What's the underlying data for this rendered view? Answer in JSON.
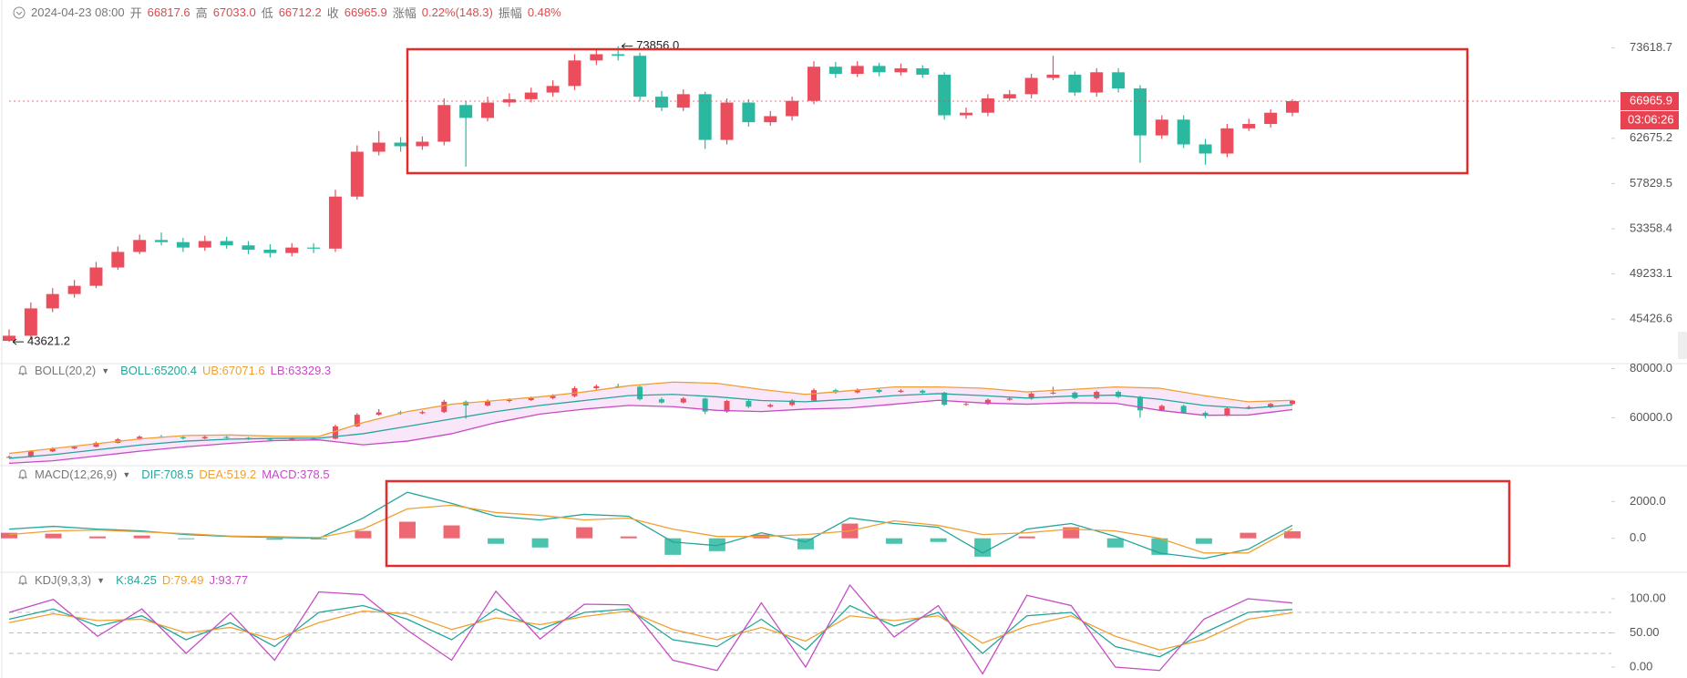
{
  "header": {
    "datetime": "2024-04-23 08:00",
    "fields": [
      {
        "label": "开",
        "value": "66817.6"
      },
      {
        "label": "高",
        "value": "67033.0"
      },
      {
        "label": "低",
        "value": "66712.2"
      },
      {
        "label": "收",
        "value": "66965.9"
      },
      {
        "label": "涨幅",
        "value": "0.22%(148.3)"
      },
      {
        "label": "振幅",
        "value": "0.48%"
      }
    ]
  },
  "chart_data": [
    {
      "type": "candlestick",
      "log_scale": true,
      "ylim": [
        43000,
        78000
      ],
      "yticks": [
        45426.6,
        49233.1,
        53358.4,
        57829.5,
        62675.2,
        73618.7
      ],
      "up_color": "#eb4d5c",
      "down_color": "#2bb8a0",
      "open": [
        43700,
        44100,
        46300,
        47500,
        48200,
        49800,
        51200,
        52300,
        52100,
        51600,
        52200,
        51800,
        51400,
        51100,
        51600,
        51500,
        56500,
        61200,
        62200,
        61800,
        62300,
        66500,
        65000,
        66800,
        67200,
        68000,
        68800,
        72000,
        72800,
        72600,
        67500,
        66200,
        67800,
        62500,
        66800,
        64500,
        65200,
        67000,
        71200,
        70300,
        71300,
        70500,
        71000,
        70200,
        65300,
        65600,
        67300,
        67800,
        69800,
        70200,
        68000,
        70500,
        68500,
        63000,
        64800,
        62000,
        61000,
        63800,
        64300,
        65600
      ],
      "high": [
        44600,
        46800,
        48000,
        48700,
        50300,
        51700,
        52800,
        53000,
        52500,
        52700,
        52600,
        52200,
        51900,
        52000,
        52000,
        57200,
        61900,
        63500,
        62800,
        62900,
        67300,
        67000,
        67500,
        67900,
        68600,
        69500,
        72800,
        73500,
        73856,
        73000,
        68200,
        68400,
        68100,
        67300,
        67200,
        65800,
        67500,
        71900,
        71800,
        71900,
        71700,
        71600,
        71400,
        70500,
        66200,
        67800,
        68300,
        70300,
        72600,
        70600,
        71000,
        71000,
        68900,
        65300,
        65300,
        62600,
        64300,
        64900,
        66000,
        67200
      ],
      "low": [
        43621.2,
        43800,
        46000,
        47200,
        48000,
        49600,
        51000,
        51800,
        51200,
        51300,
        51500,
        51000,
        50700,
        50800,
        51100,
        51200,
        56200,
        60800,
        61200,
        61400,
        61900,
        59600,
        64600,
        66300,
        66800,
        67500,
        68300,
        71400,
        72000,
        67000,
        65800,
        65800,
        61500,
        62000,
        64000,
        64100,
        64700,
        66600,
        69800,
        69900,
        70000,
        70100,
        69800,
        64800,
        64900,
        65200,
        67000,
        67300,
        69500,
        67600,
        67500,
        68000,
        60000,
        62600,
        61600,
        59800,
        60600,
        63500,
        63900,
        65200
      ],
      "close": [
        44100,
        46300,
        47500,
        48200,
        49800,
        51200,
        52300,
        52100,
        51600,
        52200,
        51800,
        51400,
        51100,
        51600,
        51500,
        56500,
        61200,
        62200,
        61800,
        62300,
        66500,
        65000,
        66800,
        67200,
        68000,
        68800,
        72000,
        72800,
        72600,
        67500,
        66200,
        67800,
        62500,
        66800,
        64500,
        65200,
        67000,
        71200,
        70300,
        71300,
        70500,
        71000,
        70200,
        65300,
        65600,
        67300,
        67800,
        69800,
        70200,
        68000,
        70500,
        68500,
        63000,
        64800,
        62000,
        61000,
        63800,
        64300,
        65600,
        66965.9
      ],
      "annotations": [
        {
          "value": 73856,
          "label": "73856.0"
        },
        {
          "value": 43621.2,
          "label": "43621.2"
        }
      ],
      "last_price": 66965.9,
      "last_price_color": "#e8414f",
      "countdown": "03:06:26"
    },
    {
      "type": "line",
      "title": "BOLL(20,2)",
      "ylim": [
        42000,
        82000
      ],
      "yticks": [
        {
          "value": 60000,
          "label": "60000.0"
        },
        {
          "value": 80000,
          "label": "80000.0"
        }
      ],
      "show_price": true,
      "band_fill": "#f6dcf6",
      "series": [
        {
          "name": "BOLL:65200.4",
          "color": "#26a69a",
          "values": [
            43500,
            45000,
            47000,
            49000,
            50500,
            51300,
            51600,
            51700,
            53500,
            56500,
            59500,
            62500,
            65000,
            67000,
            69000,
            69500,
            68500,
            67000,
            66500,
            67500,
            69000,
            69800,
            69000,
            68000,
            68800,
            69200,
            67500,
            65000,
            63800,
            65200
          ]
        },
        {
          "name": "UB:67071.6",
          "color": "#f0a032",
          "values": [
            45500,
            47500,
            49500,
            51500,
            52800,
            53000,
            52500,
            52400,
            58000,
            62500,
            65500,
            67000,
            68500,
            70500,
            73000,
            74500,
            74000,
            71500,
            69500,
            71000,
            72500,
            72500,
            72000,
            70500,
            71500,
            72500,
            72000,
            69000,
            66500,
            67100
          ]
        },
        {
          "name": "LB:63329.3",
          "color": "#c54cc5",
          "values": [
            41500,
            42500,
            44500,
            46500,
            48200,
            49600,
            50700,
            51000,
            49000,
            50500,
            53500,
            58000,
            61500,
            63500,
            65000,
            64500,
            63000,
            62500,
            63500,
            64000,
            65500,
            67100,
            66000,
            65500,
            66100,
            65900,
            63000,
            61000,
            61100,
            63300
          ]
        }
      ]
    },
    {
      "type": "macd",
      "title": "MACD(12,26,9)",
      "ylim": [
        -1700,
        3700
      ],
      "yticks": [
        {
          "value": 0,
          "label": "0.0"
        },
        {
          "value": 2000,
          "label": "2000.0"
        }
      ],
      "up_color": "#eb4d5c",
      "down_color": "#2bb8a0",
      "series": [
        {
          "name": "DIF:708.5",
          "color": "#26a69a",
          "values": [
            500,
            650,
            500,
            400,
            200,
            100,
            50,
            0,
            1100,
            2500,
            1900,
            1200,
            1000,
            1300,
            1200,
            -200,
            -400,
            300,
            -200,
            1100,
            800,
            600,
            -800,
            500,
            800,
            100,
            -800,
            -1100,
            -600,
            708.5
          ]
        },
        {
          "name": "DEA:519.2",
          "color": "#f0a032",
          "values": [
            200,
            400,
            450,
            350,
            250,
            120,
            90,
            40,
            500,
            1600,
            1800,
            1400,
            1250,
            1000,
            1100,
            500,
            100,
            100,
            200,
            400,
            950,
            700,
            200,
            300,
            500,
            400,
            0,
            -800,
            -800,
            519.2
          ]
        },
        {
          "name": "MACD:378.5",
          "color": "#c54cc5",
          "values": [
            300,
            250,
            100,
            150,
            -50,
            0,
            -80,
            -60,
            400,
            900,
            700,
            -300,
            -500,
            600,
            100,
            -900,
            -700,
            200,
            -600,
            800,
            -300,
            -200,
            -1000,
            100,
            600,
            -500,
            -900,
            -300,
            300,
            378.5
          ]
        }
      ]
    },
    {
      "type": "line",
      "title": "KDJ(9,3,3)",
      "ylim": [
        -12,
        136
      ],
      "yticks": [
        {
          "value": 0,
          "label": "0.00"
        },
        {
          "value": 50,
          "label": "50.00"
        },
        {
          "value": 100,
          "label": "100.00"
        }
      ],
      "reference_lines": [
        20,
        50,
        80
      ],
      "series": [
        {
          "name": "K:84.25",
          "color": "#26a69a",
          "values": [
            70,
            85,
            60,
            75,
            40,
            65,
            30,
            80,
            90,
            70,
            40,
            85,
            55,
            80,
            85,
            40,
            30,
            70,
            25,
            90,
            60,
            80,
            20,
            75,
            80,
            30,
            15,
            50,
            80,
            84.25
          ]
        },
        {
          "name": "D:79.49",
          "color": "#f0a032",
          "values": [
            65,
            78,
            68,
            70,
            50,
            58,
            40,
            65,
            82,
            78,
            55,
            72,
            62,
            74,
            82,
            55,
            40,
            58,
            38,
            75,
            68,
            75,
            35,
            60,
            75,
            45,
            25,
            40,
            70,
            79.49
          ]
        },
        {
          "name": "J:93.77",
          "color": "#c54cc5",
          "values": [
            80,
            99,
            45,
            85,
            20,
            79,
            10,
            110,
            106,
            54,
            10,
            111,
            41,
            92,
            91,
            10,
            -5,
            94,
            0,
            120,
            44,
            90,
            -10,
            105,
            90,
            0,
            -5,
            70,
            100,
            93.77
          ]
        }
      ]
    }
  ]
}
